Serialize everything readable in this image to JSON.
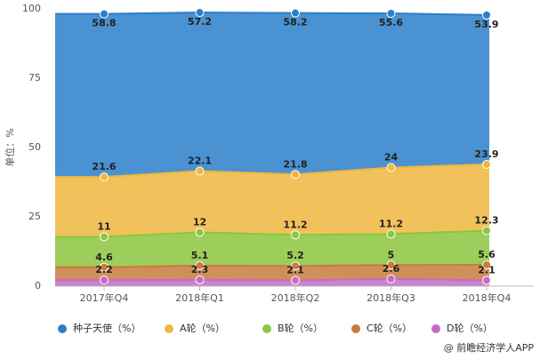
{
  "chart_data": {
    "type": "stacked_area",
    "ylabel": "单位：%",
    "categories": [
      "2017年Q4",
      "2018年Q1",
      "2018年Q2",
      "2018年Q3",
      "2018年Q4"
    ],
    "series": [
      {
        "name": "D轮（%）",
        "color": "#c46cc4",
        "values": [
          2.2,
          2.3,
          2.1,
          2.6,
          2.1
        ]
      },
      {
        "name": "C轮（%）",
        "color": "#c87b3c",
        "values": [
          4.6,
          5.1,
          5.2,
          5,
          5.6
        ]
      },
      {
        "name": "B轮（%）",
        "color": "#8cc63e",
        "values": [
          11,
          12,
          11.2,
          11.2,
          12.3
        ]
      },
      {
        "name": "A轮（%）",
        "color": "#efb73e",
        "values": [
          21.6,
          22.1,
          21.8,
          24,
          23.9
        ]
      },
      {
        "name": "种子天使（%）",
        "color": "#2a7fc9",
        "values": [
          58.8,
          57.2,
          58.2,
          55.6,
          53.9
        ]
      }
    ],
    "ylim": [
      0,
      100
    ],
    "yticks": [
      0,
      25,
      50,
      75,
      100
    ],
    "grid": false,
    "source": "@ 前瞻经济学人APP"
  }
}
